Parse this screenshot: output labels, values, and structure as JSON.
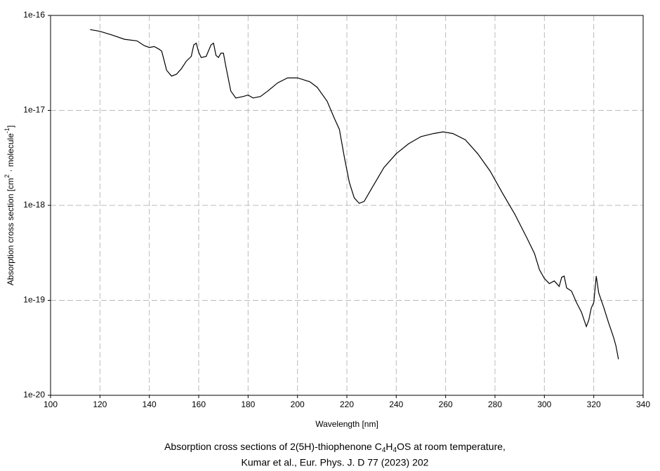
{
  "chart_data": {
    "type": "line",
    "y_label": {
      "a": "Absorption cross section [cm",
      "b": "2",
      "c": " · molecule",
      "d": "-1",
      "e": "]"
    },
    "x_label": "Wavelength [nm]",
    "caption": {
      "a": "Absorption cross sections of 2(5H)-thiophenone C",
      "b": "4",
      "c": "H",
      "d": "4",
      "e": "OS at room temperature,",
      "line2": "Kumar et al., Eur. Phys. J. D 77 (2023) 202"
    },
    "color": "#000000",
    "x": [
      116,
      120,
      125,
      130,
      135,
      138,
      140,
      142,
      144,
      145,
      147,
      149,
      151,
      153,
      155,
      157,
      158,
      159,
      160,
      161,
      163,
      165,
      166,
      167,
      168,
      169,
      170,
      171,
      173,
      175,
      178,
      180,
      182,
      185,
      188,
      192,
      196,
      200,
      205,
      208,
      212,
      215,
      217,
      219,
      221,
      223,
      225,
      227,
      230,
      235,
      240,
      245,
      250,
      255,
      259,
      263,
      268,
      273,
      278,
      283,
      288,
      293,
      296,
      298,
      300,
      302,
      304,
      306,
      307,
      308,
      309,
      311,
      313,
      315,
      317,
      318,
      319,
      320,
      321,
      322,
      324,
      326,
      328,
      329,
      330
    ],
    "values": [
      7.1e-17,
      6.8e-17,
      6.2e-17,
      5.6e-17,
      5.4e-17,
      4.8e-17,
      4.6e-17,
      4.7e-17,
      4.4e-17,
      4.2e-17,
      2.65e-17,
      2.3e-17,
      2.4e-17,
      2.75e-17,
      3.3e-17,
      3.7e-17,
      4.9e-17,
      5.1e-17,
      4.1e-17,
      3.6e-17,
      3.7e-17,
      4.9e-17,
      5.1e-17,
      3.8e-17,
      3.6e-17,
      4e-17,
      4e-17,
      2.9e-17,
      1.6e-17,
      1.35e-17,
      1.4e-17,
      1.45e-17,
      1.35e-17,
      1.4e-17,
      1.6e-17,
      1.95e-17,
      2.2e-17,
      2.2e-17,
      2e-17,
      1.75e-17,
      1.25e-17,
      8.2e-18,
      6.3e-18,
      3.2e-18,
      1.75e-18,
      1.2e-18,
      1.05e-18,
      1.1e-18,
      1.5e-18,
      2.5e-18,
      3.5e-18,
      4.45e-18,
      5.3e-18,
      5.7e-18,
      5.95e-18,
      5.7e-18,
      4.9e-18,
      3.5e-18,
      2.3e-18,
      1.35e-18,
      8.1e-19,
      4.5e-19,
      3.1e-19,
      2.1e-19,
      1.7e-19,
      1.5e-19,
      1.6e-19,
      1.4e-19,
      1.75e-19,
      1.8e-19,
      1.35e-19,
      1.25e-19,
      9.5e-20,
      7.5e-20,
      5.3e-20,
      6.2e-20,
      8.3e-20,
      9.5e-20,
      1.8e-19,
      1.2e-19,
      8.5e-20,
      5.8e-20,
      4.1e-20,
      3.3e-20,
      2.4e-20
    ],
    "xlim": [
      100,
      340
    ],
    "xticks": [
      100,
      120,
      140,
      160,
      180,
      200,
      220,
      240,
      260,
      280,
      300,
      320,
      340
    ],
    "ylim": [
      1e-20,
      1e-16
    ],
    "yticks": [
      1e-20,
      1e-19,
      1e-18,
      1e-17,
      1e-16
    ],
    "log_y": true,
    "grid": true
  }
}
